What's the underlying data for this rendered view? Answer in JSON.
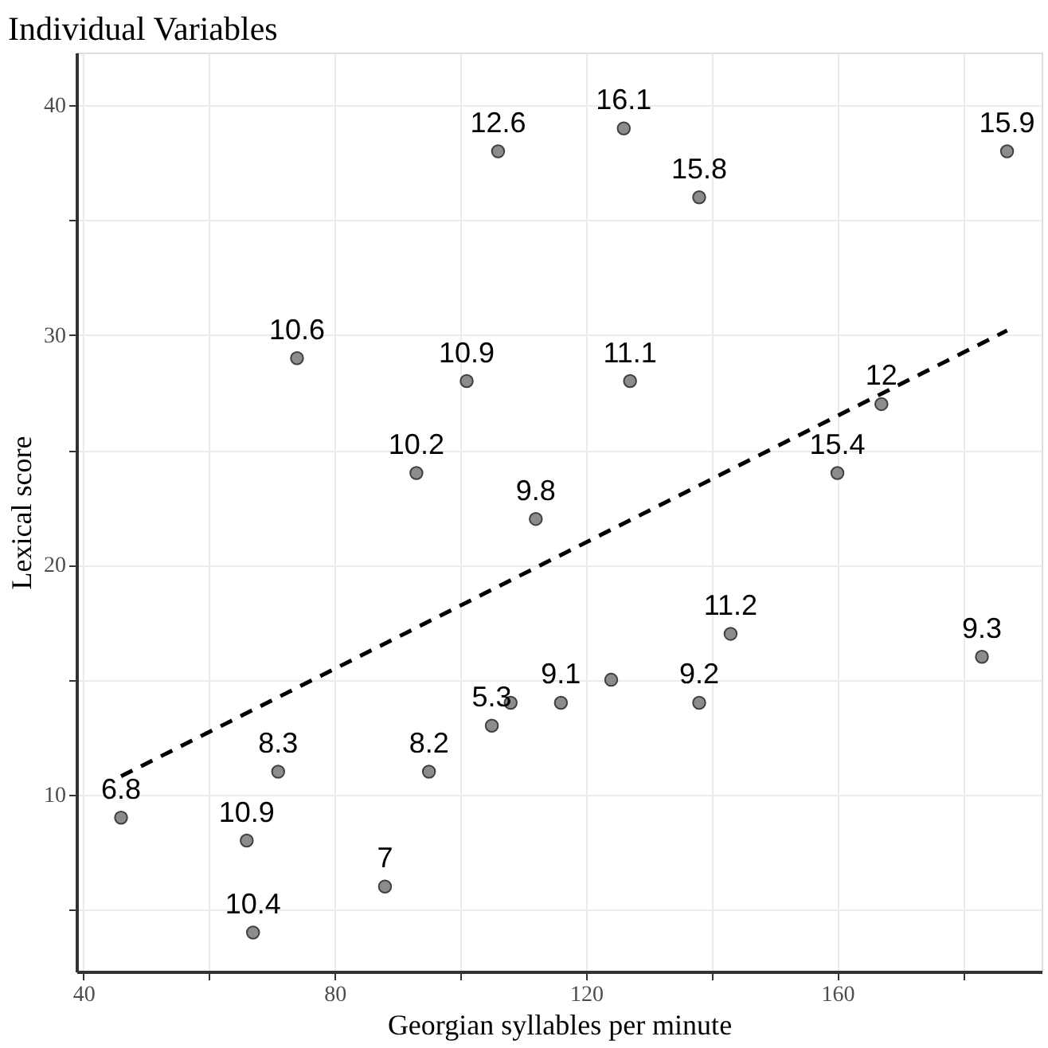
{
  "chart_data": {
    "type": "scatter",
    "title": "Individual Variables",
    "xlabel": "Georgian syllables per minute",
    "ylabel": "Lexical score",
    "xlim": [
      38.9,
      192.5
    ],
    "ylim": [
      2.3,
      42.3
    ],
    "xticks": [
      40,
      {
        "value": 60,
        "label": null
      },
      80,
      {
        "value": 100,
        "label": null
      },
      120,
      {
        "value": 140,
        "label": null
      },
      160,
      {
        "value": 180,
        "label": null
      }
    ],
    "yticks": [
      {
        "value": 5,
        "label": null
      },
      10,
      {
        "value": 15,
        "label": null
      },
      20,
      {
        "value": 25,
        "label": null
      },
      30,
      {
        "value": 35,
        "label": null
      },
      40
    ],
    "grid": true,
    "series": [
      {
        "marker": "circle",
        "color": "#7f7f7f",
        "x": [
          74,
          101,
          93,
          106,
          126,
          138,
          187,
          127,
          167,
          160,
          112,
          46,
          66,
          67,
          71,
          88,
          95,
          105,
          108,
          116,
          124,
          143,
          138,
          183
        ],
        "values": [
          29,
          28,
          24,
          38,
          39,
          36,
          38,
          28,
          27,
          24,
          22,
          9,
          8,
          4,
          11,
          6,
          11,
          13,
          14,
          14,
          15,
          17,
          14,
          16
        ]
      },
      {
        "type": "line",
        "marker": "none",
        "line_style": "dashed",
        "color": "#000000",
        "x": [
          46,
          187
        ],
        "values": [
          10.8,
          30.2
        ]
      }
    ],
    "annotations": [
      {
        "text": "10.6",
        "x": 74,
        "y": 29
      },
      {
        "text": "10.9",
        "x": 101,
        "y": 28
      },
      {
        "text": "10.2",
        "x": 93,
        "y": 24
      },
      {
        "text": "12.6",
        "x": 106,
        "y": 38
      },
      {
        "text": "16.1",
        "x": 126,
        "y": 39
      },
      {
        "text": "15.8",
        "x": 138,
        "y": 36
      },
      {
        "text": "15.9",
        "x": 187,
        "y": 38
      },
      {
        "text": "11.1",
        "x": 127,
        "y": 28
      },
      {
        "text": "12",
        "x": 167,
        "y": 27
      },
      {
        "text": "15.4",
        "x": 160,
        "y": 24
      },
      {
        "text": "9.8",
        "x": 112,
        "y": 22
      },
      {
        "text": "6.8",
        "x": 46,
        "y": 9
      },
      {
        "text": "10.9",
        "x": 66,
        "y": 8
      },
      {
        "text": "10.4",
        "x": 67,
        "y": 4
      },
      {
        "text": "8.3",
        "x": 71,
        "y": 11
      },
      {
        "text": "7",
        "x": 88,
        "y": 6
      },
      {
        "text": "8.2",
        "x": 95,
        "y": 11
      },
      {
        "text": "5.3",
        "x": 105,
        "y": 13
      },
      {
        "text": "9.1",
        "x": 116,
        "y": 14
      },
      {
        "text": "11.2",
        "x": 143,
        "y": 17
      },
      {
        "text": "9.2",
        "x": 138,
        "y": 14
      },
      {
        "text": "9.3",
        "x": 183,
        "y": 16
      }
    ]
  }
}
